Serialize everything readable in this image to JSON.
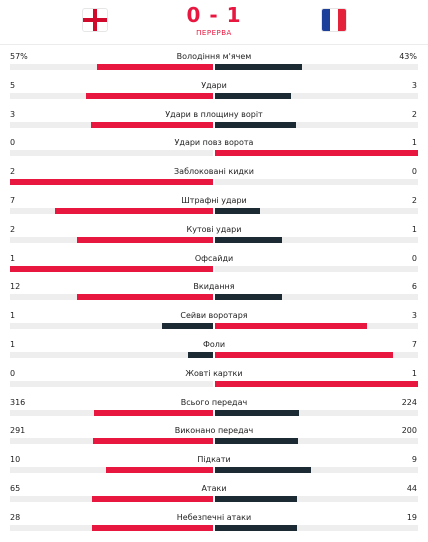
{
  "match": {
    "score": "0 - 1",
    "status": "ПЕРЕРВА",
    "home_flag_icon": "england-flag-icon",
    "away_flag_icon": "france-flag-icon"
  },
  "colors": {
    "leading": "#e8173f",
    "trailing": "#1c2a33",
    "track": "#eeeeee"
  },
  "stats": [
    {
      "label": "Володіння м'ячем",
      "home": "57%",
      "away": "43%",
      "home_share": 0.57,
      "away_share": 0.43
    },
    {
      "label": "Удари",
      "home": "5",
      "away": "3",
      "home_share": 0.625,
      "away_share": 0.375
    },
    {
      "label": "Удари в площину воріт",
      "home": "3",
      "away": "2",
      "home_share": 0.6,
      "away_share": 0.4
    },
    {
      "label": "Удари повз ворота",
      "home": "0",
      "away": "1",
      "home_share": 0,
      "away_share": 1
    },
    {
      "label": "Заблоковані кидки",
      "home": "2",
      "away": "0",
      "home_share": 1,
      "away_share": 0
    },
    {
      "label": "Штрафні удари",
      "home": "7",
      "away": "2",
      "home_share": 0.78,
      "away_share": 0.22
    },
    {
      "label": "Кутові удари",
      "home": "2",
      "away": "1",
      "home_share": 0.67,
      "away_share": 0.33
    },
    {
      "label": "Офсайди",
      "home": "1",
      "away": "0",
      "home_share": 1,
      "away_share": 0
    },
    {
      "label": "Вкидання",
      "home": "12",
      "away": "6",
      "home_share": 0.67,
      "away_share": 0.33
    },
    {
      "label": "Сейви воротаря",
      "home": "1",
      "away": "3",
      "home_share": 0.25,
      "away_share": 0.75
    },
    {
      "label": "Фоли",
      "home": "1",
      "away": "7",
      "home_share": 0.125,
      "away_share": 0.875
    },
    {
      "label": "Жовті картки",
      "home": "0",
      "away": "1",
      "home_share": 0,
      "away_share": 1
    },
    {
      "label": "Всього передач",
      "home": "316",
      "away": "224",
      "home_share": 0.585,
      "away_share": 0.415
    },
    {
      "label": "Виконано передач",
      "home": "291",
      "away": "200",
      "home_share": 0.593,
      "away_share": 0.407
    },
    {
      "label": "Підкати",
      "home": "10",
      "away": "9",
      "home_share": 0.526,
      "away_share": 0.474
    },
    {
      "label": "Атаки",
      "home": "65",
      "away": "44",
      "home_share": 0.596,
      "away_share": 0.404
    },
    {
      "label": "Небезпечні атаки",
      "home": "28",
      "away": "19",
      "home_share": 0.596,
      "away_share": 0.404
    }
  ]
}
